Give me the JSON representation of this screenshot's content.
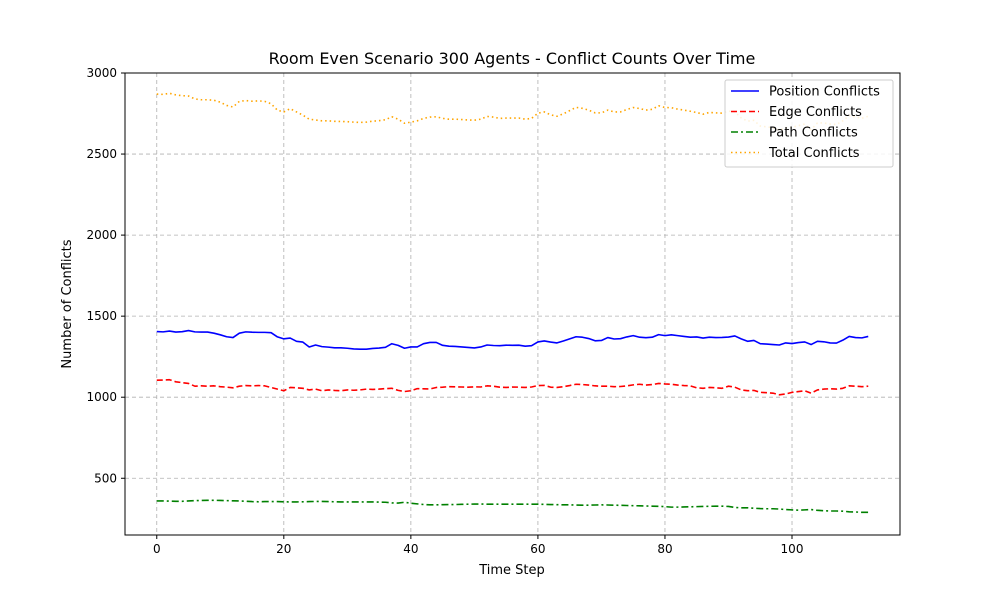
{
  "chart_data": {
    "type": "line",
    "title": "Room Even Scenario 300 Agents - Conflict Counts Over Time",
    "xlabel": "Time Step",
    "ylabel": "Number of Conflicts",
    "xlim": [
      -5,
      117
    ],
    "ylim": [
      150,
      3000
    ],
    "xticks": [
      0,
      20,
      40,
      60,
      80,
      100
    ],
    "yticks": [
      500,
      1000,
      1500,
      2000,
      2500,
      3000
    ],
    "grid": true,
    "legend": "top-right",
    "series": [
      {
        "name": "Position Conflicts",
        "color": "#0000ff",
        "style": "solid",
        "values": [
          1405,
          1403,
          1408,
          1402,
          1404,
          1411,
          1403,
          1402,
          1402,
          1395,
          1385,
          1373,
          1368,
          1395,
          1403,
          1401,
          1400,
          1400,
          1398,
          1372,
          1360,
          1365,
          1345,
          1340,
          1310,
          1322,
          1312,
          1309,
          1305,
          1305,
          1302,
          1298,
          1296,
          1296,
          1301,
          1303,
          1308,
          1330,
          1320,
          1302,
          1310,
          1310,
          1330,
          1338,
          1338,
          1320,
          1315,
          1313,
          1310,
          1307,
          1304,
          1310,
          1322,
          1319,
          1318,
          1321,
          1320,
          1321,
          1315,
          1318,
          1341,
          1347,
          1340,
          1335,
          1347,
          1360,
          1373,
          1370,
          1362,
          1348,
          1350,
          1368,
          1359,
          1361,
          1372,
          1380,
          1370,
          1367,
          1370,
          1386,
          1380,
          1385,
          1380,
          1375,
          1370,
          1372,
          1365,
          1370,
          1368,
          1369,
          1371,
          1378,
          1360,
          1345,
          1350,
          1330,
          1328,
          1325,
          1322,
          1335,
          1331,
          1337,
          1341,
          1325,
          1345,
          1342,
          1335,
          1334,
          1352,
          1375,
          1368,
          1366,
          1375
        ]
      },
      {
        "name": "Edge Conflicts",
        "color": "#ff0000",
        "style": "dashed",
        "values": [
          1105,
          1106,
          1108,
          1095,
          1090,
          1085,
          1068,
          1070,
          1068,
          1070,
          1065,
          1062,
          1058,
          1068,
          1072,
          1070,
          1072,
          1070,
          1060,
          1050,
          1040,
          1060,
          1058,
          1055,
          1045,
          1050,
          1040,
          1045,
          1042,
          1040,
          1045,
          1043,
          1045,
          1050,
          1048,
          1050,
          1053,
          1055,
          1042,
          1035,
          1040,
          1053,
          1052,
          1051,
          1060,
          1062,
          1065,
          1064,
          1063,
          1062,
          1064,
          1063,
          1070,
          1068,
          1062,
          1060,
          1063,
          1062,
          1060,
          1063,
          1072,
          1073,
          1062,
          1060,
          1065,
          1072,
          1080,
          1078,
          1075,
          1070,
          1068,
          1068,
          1065,
          1066,
          1070,
          1076,
          1080,
          1075,
          1078,
          1085,
          1082,
          1080,
          1075,
          1072,
          1070,
          1058,
          1055,
          1060,
          1058,
          1055,
          1068,
          1062,
          1045,
          1040,
          1042,
          1030,
          1028,
          1025,
          1015,
          1020,
          1030,
          1035,
          1040,
          1025,
          1045,
          1050,
          1052,
          1050,
          1055,
          1070,
          1068,
          1065,
          1068
        ]
      },
      {
        "name": "Path Conflicts",
        "color": "#008000",
        "style": "dashdot",
        "values": [
          360,
          360,
          359,
          358,
          358,
          360,
          362,
          363,
          364,
          364,
          363,
          362,
          361,
          360,
          358,
          356,
          355,
          356,
          356,
          356,
          355,
          354,
          354,
          355,
          356,
          357,
          357,
          356,
          355,
          354,
          354,
          354,
          354,
          354,
          354,
          353,
          352,
          348,
          347,
          352,
          346,
          342,
          338,
          336,
          336,
          337,
          338,
          338,
          339,
          340,
          341,
          341,
          340,
          340,
          340,
          340,
          340,
          340,
          340,
          340,
          340,
          339,
          338,
          337,
          336,
          336,
          335,
          334,
          334,
          335,
          336,
          335,
          334,
          333,
          332,
          331,
          330,
          329,
          328,
          327,
          325,
          322,
          322,
          323,
          324,
          325,
          326,
          327,
          328,
          328,
          326,
          320,
          318,
          318,
          315,
          313,
          312,
          312,
          310,
          307,
          305,
          303,
          305,
          307,
          302,
          300,
          298,
          298,
          297,
          293,
          292,
          290,
          290
        ]
      },
      {
        "name": "Total Conflicts",
        "color": "#ffa500",
        "style": "dotted",
        "values": [
          2870,
          2868,
          2875,
          2865,
          2860,
          2858,
          2840,
          2835,
          2835,
          2832,
          2820,
          2800,
          2790,
          2825,
          2830,
          2826,
          2828,
          2825,
          2810,
          2770,
          2760,
          2780,
          2760,
          2740,
          2715,
          2710,
          2705,
          2705,
          2702,
          2701,
          2700,
          2697,
          2695,
          2697,
          2703,
          2706,
          2712,
          2730,
          2715,
          2690,
          2697,
          2705,
          2720,
          2728,
          2730,
          2720,
          2715,
          2715,
          2713,
          2710,
          2709,
          2715,
          2732,
          2728,
          2720,
          2722,
          2722,
          2722,
          2715,
          2720,
          2752,
          2760,
          2742,
          2733,
          2748,
          2768,
          2788,
          2782,
          2771,
          2754,
          2754,
          2771,
          2760,
          2760,
          2775,
          2787,
          2781,
          2771,
          2776,
          2798,
          2787,
          2786,
          2777,
          2771,
          2764,
          2756,
          2746,
          2757,
          2754,
          2752,
          2765,
          2760,
          2723,
          2703,
          2708,
          2673,
          2668,
          2662,
          2647,
          2663,
          2665,
          2675,
          2685,
          2650,
          2692,
          2692,
          2685,
          2682,
          2705,
          2738,
          2728,
          2721,
          2733
        ]
      }
    ]
  }
}
